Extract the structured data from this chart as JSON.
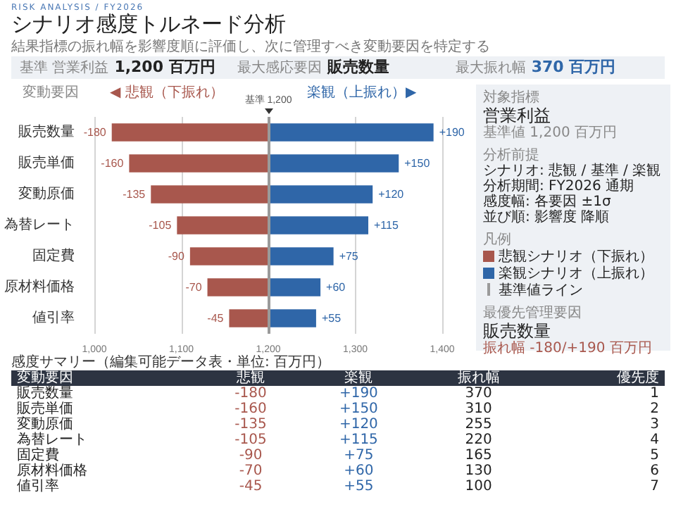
{
  "chart_data": {
    "type": "bar",
    "orientation": "horizontal",
    "title": "シナリオ感度トルネード分析",
    "subtitle": "結果指標の振れ幅を影響度順に評価し、次に管理すべき変動要因を特定する",
    "categories": [
      "販売数量",
      "販売単価",
      "変動原価",
      "為替レート",
      "固定費",
      "原材料価格",
      "値引率"
    ],
    "series": [
      {
        "name": "悲観シナリオ（下振れ）",
        "color": "#a8574d",
        "base": [
          1200,
          1200,
          1200,
          1200,
          1200,
          1200,
          1200
        ],
        "values": [
          -180,
          -160,
          -135,
          -105,
          -90,
          -70,
          -45
        ],
        "value_labels": [
          "-180",
          "-160",
          "-135",
          "-105",
          "-90",
          "-70",
          "-45"
        ]
      },
      {
        "name": "楽観シナリオ（上振れ）",
        "color": "#2f66a8",
        "base": [
          1200,
          1200,
          1200,
          1200,
          1200,
          1200,
          1200
        ],
        "values": [
          190,
          150,
          120,
          115,
          75,
          60,
          55
        ],
        "value_labels": [
          "+190",
          "+150",
          "+120",
          "+115",
          "+75",
          "+60",
          "+55"
        ]
      }
    ],
    "xlim": [
      1000,
      1400
    ],
    "xticks": [
      {
        "value": 1000,
        "label": "1,000"
      },
      {
        "value": 1100,
        "label": "1,100"
      },
      {
        "value": 1200,
        "label": "1,200"
      },
      {
        "value": 1300,
        "label": "1,300"
      },
      {
        "value": 1400,
        "label": "1,400"
      }
    ],
    "ref_lines": [
      {
        "axis": "x",
        "value": 1200,
        "label": "基準 1,200",
        "color": "#9a9a9a"
      }
    ],
    "grid": "x",
    "legend": "right",
    "annotations": [
      "RISK ANALYSIS / FY2026",
      "基準 営業利益",
      "1,200 百万円",
      "最大感応要因",
      "販売数量",
      "最大振れ幅",
      "370 百万円",
      "◀ 悲観（下振れ）",
      "楽観（上振れ）▶",
      "対象指標",
      "営業利益",
      "基準値 1,200 百万円",
      "分析前提",
      "シナリオ: 悲観 / 基準 / 楽観",
      "分析期間: FY2026 通期",
      "感度幅: 各要因 ±1σ",
      "並び順: 影響度 降順",
      "凡例",
      "基準値ライン",
      "最優先管理要因",
      "販売数量",
      "振れ幅 -180/+190 百万円",
      "感度サマリー（編集可能データ表・単位: 百万円）",
      "変動要因",
      "悲観",
      "楽観",
      "振れ幅",
      "優先度",
      "370",
      "310",
      "255",
      "220",
      "165",
      "130",
      "100",
      "1",
      "2",
      "3",
      "4",
      "5",
      "6",
      "7",
      "変動要因"
    ]
  }
}
